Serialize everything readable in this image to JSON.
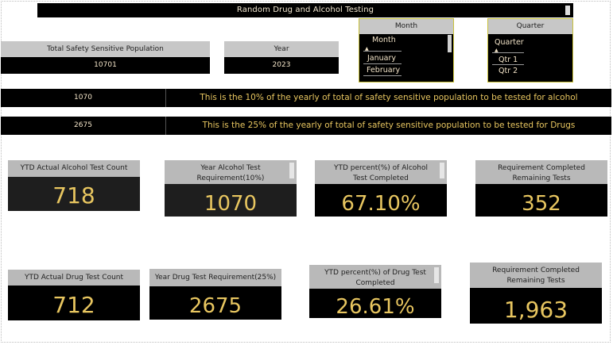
{
  "title": "Random Drug and Alcohol Testing",
  "population": {
    "label": "Total Safety Sensitive Population",
    "value": "10701"
  },
  "year": {
    "label": "Year",
    "value": "2023"
  },
  "month_slicer": {
    "title": "Month",
    "header_item": "Month",
    "items": [
      "January",
      "February"
    ]
  },
  "quarter_slicer": {
    "title": "Quarter",
    "header_item": "Quarter",
    "items": [
      "Qtr 1",
      "Qtr 2"
    ]
  },
  "alcohol_row": {
    "value": "1070",
    "text": "This is the 10% of the yearly of total of safety sensitive population to be tested for alcohol"
  },
  "drug_row": {
    "value": "2675",
    "text": "This is the 25% of the yearly of total of safety sensitive population to be tested for Drugs"
  },
  "alcohol_kpis": {
    "actual": {
      "label": "YTD Actual Alcohol Test Count",
      "value": "718"
    },
    "requirement": {
      "label": "Year Alcohol Test Requirement(10%)",
      "value": "1070"
    },
    "percent": {
      "label": "YTD percent(%) of Alcohol Test Completed",
      "value": "67.10%"
    },
    "remaining": {
      "label": "Requirement Completed Remaining Tests",
      "value": "352"
    }
  },
  "drug_kpis": {
    "actual": {
      "label": "YTD Actual Drug Test Count",
      "value": "712"
    },
    "requirement": {
      "label": "Year Drug Test Requirement(25%)",
      "value": "2675"
    },
    "percent": {
      "label": "YTD percent(%) of Drug Test Completed",
      "value": "26.61%"
    },
    "remaining": {
      "label": "Requirement Completed Remaining Tests",
      "value": "1,963"
    }
  },
  "colors": {
    "accent_gold": "#e8c660",
    "slicer_border": "#c9c23a",
    "card_header": "#b9b9b9",
    "panel_bg": "#000000"
  }
}
